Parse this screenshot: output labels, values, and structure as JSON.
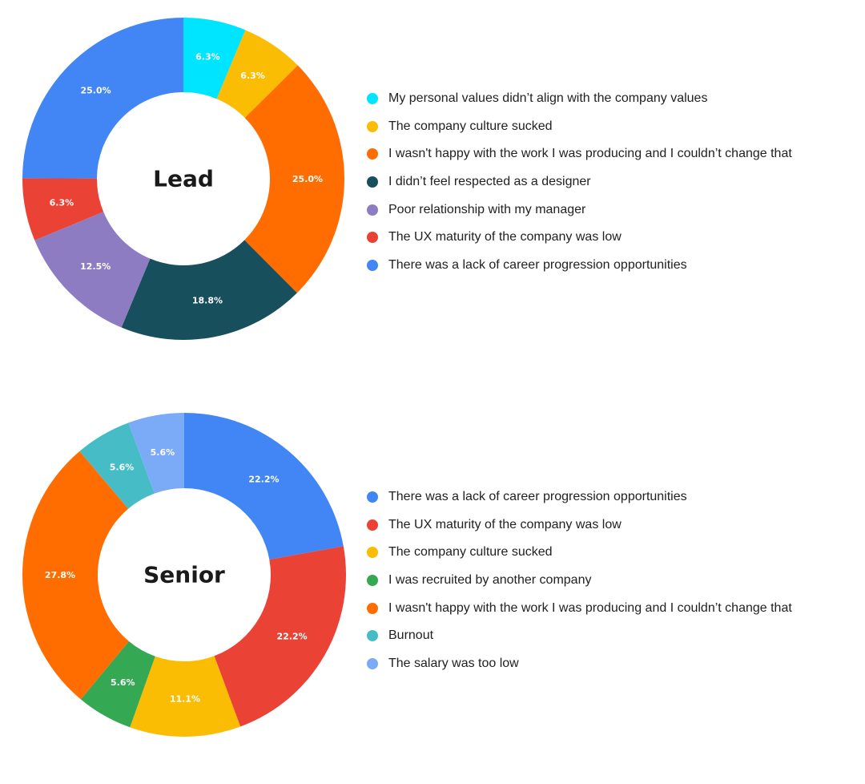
{
  "chart_data": [
    {
      "type": "pie",
      "variant": "donut",
      "title": "Lead",
      "legend_position": "right",
      "series": [
        {
          "name": "My personal values didn’t align with the company values",
          "value": 6.3,
          "label": "6.3%",
          "color": "#00E5FF"
        },
        {
          "name": "The company culture sucked",
          "value": 6.3,
          "label": "6.3%",
          "color": "#FBBC04"
        },
        {
          "name": "I wasn't happy with the work I was producing and I couldn’t change that",
          "value": 25.0,
          "label": "25.0%",
          "color": "#FF6D01"
        },
        {
          "name": "I didn’t feel respected as a designer",
          "value": 18.8,
          "label": "18.8%",
          "color": "#174F5C"
        },
        {
          "name": "Poor relationship with my manager",
          "value": 12.5,
          "label": "12.5%",
          "color": "#8E7CC3"
        },
        {
          "name": "The UX maturity of the company was low",
          "value": 6.3,
          "label": "6.3%",
          "color": "#EA4335"
        },
        {
          "name": "There was a lack of career progression opportunities",
          "value": 25.0,
          "label": "25.0%",
          "color": "#4285F4"
        }
      ]
    },
    {
      "type": "pie",
      "variant": "donut",
      "title": "Senior",
      "legend_position": "right",
      "series": [
        {
          "name": "There was a lack of career progression opportunities",
          "value": 22.2,
          "label": "22.2%",
          "color": "#4285F4"
        },
        {
          "name": "The UX maturity of the company was low",
          "value": 22.2,
          "label": "22.2%",
          "color": "#EA4335"
        },
        {
          "name": "The company culture sucked",
          "value": 11.1,
          "label": "11.1%",
          "color": "#FBBC04"
        },
        {
          "name": "I was recruited by another company",
          "value": 5.6,
          "label": "5.6%",
          "color": "#34A853"
        },
        {
          "name": "I wasn't happy with the work I was producing and I couldn’t change that",
          "value": 27.8,
          "label": "27.8%",
          "color": "#FF6D01"
        },
        {
          "name": "Burnout",
          "value": 5.6,
          "label": "5.6%",
          "color": "#46BDC6"
        },
        {
          "name": "The salary was too low",
          "value": 5.6,
          "label": "5.6%",
          "color": "#7BAAF7"
        }
      ]
    }
  ]
}
